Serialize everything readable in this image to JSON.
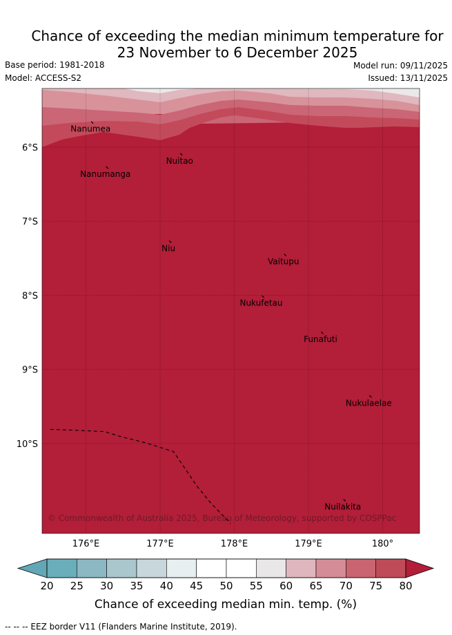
{
  "header": {
    "title_line1": "Chance of exceeding the median minimum temperature for",
    "title_line2": "23 November to 6 December 2025",
    "base_period": "Base period: 1981-2018",
    "model": "Model: ACCESS-S2",
    "model_run": "Model run: 09/11/2025",
    "issued": "Issued: 13/11/2025"
  },
  "map": {
    "lat_ticks": [
      {
        "value": -6,
        "label": "6°S"
      },
      {
        "value": -7,
        "label": "7°S"
      },
      {
        "value": -8,
        "label": "8°S"
      },
      {
        "value": -9,
        "label": "9°S"
      },
      {
        "value": -10,
        "label": "10°S"
      }
    ],
    "lon_ticks": [
      {
        "value": 176,
        "label": "176°E"
      },
      {
        "value": 177,
        "label": "177°E"
      },
      {
        "value": 178,
        "label": "178°E"
      },
      {
        "value": 179,
        "label": "179°E"
      },
      {
        "value": 180,
        "label": "180°"
      }
    ],
    "islands": [
      {
        "name": "Nanumea",
        "lon": 176.1,
        "lat": -5.68
      },
      {
        "name": "Nanumanga",
        "lon": 176.3,
        "lat": -6.29
      },
      {
        "name": "Nuitao",
        "lon": 177.3,
        "lat": -6.11
      },
      {
        "name": "Niu",
        "lon": 177.15,
        "lat": -7.29
      },
      {
        "name": "Vaitupu",
        "lon": 178.7,
        "lat": -7.47
      },
      {
        "name": "Nukufetau",
        "lon": 178.4,
        "lat": -8.03
      },
      {
        "name": "Funafuti",
        "lon": 179.2,
        "lat": -8.52
      },
      {
        "name": "Nukulaelae",
        "lon": 179.85,
        "lat": -9.38
      },
      {
        "name": "Nuilakita",
        "lon": 179.5,
        "lat": -10.78
      }
    ],
    "eez_border": [
      [
        175.52,
        -9.81
      ],
      [
        175.82,
        -9.82
      ],
      [
        176.25,
        -9.84
      ],
      [
        176.48,
        -9.91
      ],
      [
        176.8,
        -9.99
      ],
      [
        177.18,
        -10.11
      ],
      [
        177.5,
        -10.58
      ],
      [
        177.68,
        -10.8
      ],
      [
        177.95,
        -11.08
      ]
    ],
    "copyright": "© Commonwealth of Australia 2025, Bureau of Meteorology, supported by COSPPac",
    "colors": {
      "gt80": "#b31e38",
      "c75_80": "#c34a5a",
      "c70_75": "#ca6676",
      "c65_70": "#d8929a",
      "c60_65": "#e0b8bf",
      "c55_60": "#ebe8ea"
    }
  },
  "colorbar": {
    "ticks": [
      "20",
      "25",
      "30",
      "35",
      "40",
      "45",
      "50",
      "55",
      "60",
      "65",
      "70",
      "75",
      "80"
    ],
    "under_color": "#62a7b5",
    "over_color": "#b31e38",
    "bin_colors": [
      "#69aeba",
      "#8cb8c3",
      "#a9c7cd",
      "#c7d7dc",
      "#e8eff1",
      "#ffffff",
      "#ffffff",
      "#eae7e9",
      "#dfb6bd",
      "#d48d96",
      "#c96471",
      "#bf4b58"
    ],
    "label": "Chance of exceeding median min. temp. (%)"
  },
  "footnote": "--  --  -- EEZ border V11 (Flanders Marine Institute, 2019)."
}
